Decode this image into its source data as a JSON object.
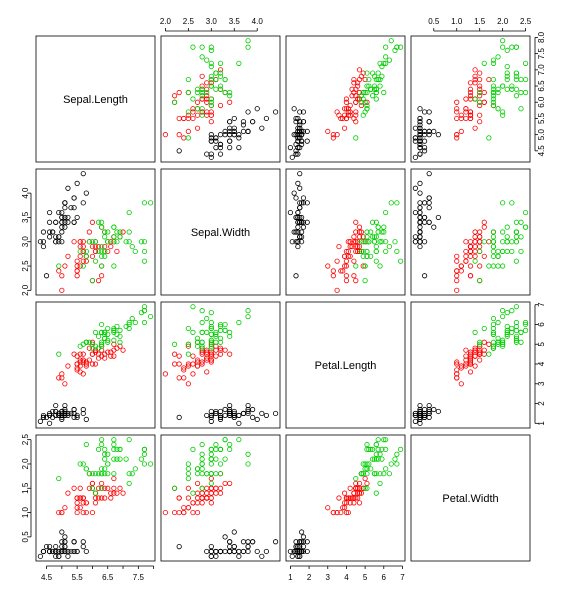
{
  "chart_data": {
    "type": "scatter",
    "title": "",
    "variables": [
      "Sepal.Length",
      "Sepal.Width",
      "Petal.Length",
      "Petal.Width"
    ],
    "ranges": {
      "Sepal.Length": [
        4.3,
        7.9
      ],
      "Sepal.Width": [
        2.0,
        4.4
      ],
      "Petal.Length": [
        1.0,
        6.9
      ],
      "Petal.Width": [
        0.1,
        2.5
      ]
    },
    "ticks": {
      "Sepal.Length": [
        "4.5",
        "5.0",
        "5.5",
        "6.0",
        "6.5",
        "7.0",
        "7.5",
        "8.0"
      ],
      "Sepal.Width": [
        "2.0",
        "2.5",
        "3.0",
        "3.5",
        "4.0"
      ],
      "Petal.Length": [
        "1",
        "2",
        "3",
        "4",
        "5",
        "6",
        "7"
      ],
      "Petal.Width": [
        "0.5",
        "1.0",
        "1.5",
        "2.0",
        "2.5"
      ]
    },
    "bottom_tick_labels": {
      "Sepal.Length": [
        "4.5",
        "5.5",
        "6.5",
        "7.5"
      ],
      "Petal.Length": [
        "1",
        "2",
        "3",
        "4",
        "5",
        "6",
        "7"
      ]
    },
    "grid": false,
    "legend": "none",
    "marker": "open-circle",
    "series_colors": [
      "#000000",
      "#ff0000",
      "#00cd00"
    ],
    "series": [
      {
        "points": [
          [
            5.1,
            3.5,
            1.4,
            0.2
          ],
          [
            4.9,
            3.0,
            1.4,
            0.2
          ],
          [
            4.7,
            3.2,
            1.3,
            0.2
          ],
          [
            4.6,
            3.1,
            1.5,
            0.2
          ],
          [
            5.0,
            3.6,
            1.4,
            0.2
          ],
          [
            5.4,
            3.9,
            1.7,
            0.4
          ],
          [
            4.6,
            3.4,
            1.4,
            0.3
          ],
          [
            5.0,
            3.4,
            1.5,
            0.2
          ],
          [
            4.4,
            2.9,
            1.4,
            0.2
          ],
          [
            4.9,
            3.1,
            1.5,
            0.1
          ],
          [
            5.4,
            3.7,
            1.5,
            0.2
          ],
          [
            4.8,
            3.4,
            1.6,
            0.2
          ],
          [
            4.8,
            3.0,
            1.4,
            0.1
          ],
          [
            4.3,
            3.0,
            1.1,
            0.1
          ],
          [
            5.8,
            4.0,
            1.2,
            0.2
          ],
          [
            5.7,
            4.4,
            1.5,
            0.4
          ],
          [
            5.4,
            3.9,
            1.3,
            0.4
          ],
          [
            5.1,
            3.5,
            1.4,
            0.3
          ],
          [
            5.7,
            3.8,
            1.7,
            0.3
          ],
          [
            5.1,
            3.8,
            1.5,
            0.3
          ],
          [
            5.4,
            3.4,
            1.7,
            0.2
          ],
          [
            5.1,
            3.7,
            1.5,
            0.4
          ],
          [
            4.6,
            3.6,
            1.0,
            0.2
          ],
          [
            5.1,
            3.3,
            1.7,
            0.5
          ],
          [
            4.8,
            3.4,
            1.9,
            0.2
          ],
          [
            5.0,
            3.0,
            1.6,
            0.2
          ],
          [
            5.0,
            3.4,
            1.6,
            0.4
          ],
          [
            5.2,
            3.5,
            1.5,
            0.2
          ],
          [
            5.2,
            3.4,
            1.4,
            0.2
          ],
          [
            4.7,
            3.2,
            1.6,
            0.2
          ],
          [
            4.8,
            3.1,
            1.6,
            0.2
          ],
          [
            5.4,
            3.4,
            1.5,
            0.4
          ],
          [
            5.2,
            4.1,
            1.5,
            0.1
          ],
          [
            5.5,
            4.2,
            1.4,
            0.2
          ],
          [
            4.9,
            3.1,
            1.5,
            0.2
          ],
          [
            5.0,
            3.2,
            1.2,
            0.2
          ],
          [
            5.5,
            3.5,
            1.3,
            0.2
          ],
          [
            4.9,
            3.6,
            1.4,
            0.1
          ],
          [
            4.4,
            3.0,
            1.3,
            0.2
          ],
          [
            5.1,
            3.4,
            1.5,
            0.2
          ],
          [
            5.0,
            3.5,
            1.3,
            0.3
          ],
          [
            4.5,
            2.3,
            1.3,
            0.3
          ],
          [
            4.4,
            3.2,
            1.3,
            0.2
          ],
          [
            5.0,
            3.5,
            1.6,
            0.6
          ],
          [
            5.1,
            3.8,
            1.9,
            0.4
          ],
          [
            4.8,
            3.0,
            1.4,
            0.3
          ],
          [
            5.1,
            3.8,
            1.6,
            0.2
          ],
          [
            4.6,
            3.2,
            1.4,
            0.2
          ],
          [
            5.3,
            3.7,
            1.5,
            0.2
          ],
          [
            5.0,
            3.3,
            1.4,
            0.2
          ]
        ]
      },
      {
        "points": [
          [
            7.0,
            3.2,
            4.7,
            1.4
          ],
          [
            6.4,
            3.2,
            4.5,
            1.5
          ],
          [
            6.9,
            3.1,
            4.9,
            1.5
          ],
          [
            5.5,
            2.3,
            4.0,
            1.3
          ],
          [
            6.5,
            2.8,
            4.6,
            1.5
          ],
          [
            5.7,
            2.8,
            4.5,
            1.3
          ],
          [
            6.3,
            3.3,
            4.7,
            1.6
          ],
          [
            4.9,
            2.4,
            3.3,
            1.0
          ],
          [
            6.6,
            2.9,
            4.6,
            1.3
          ],
          [
            5.2,
            2.7,
            3.9,
            1.4
          ],
          [
            5.0,
            2.0,
            3.5,
            1.0
          ],
          [
            5.9,
            3.0,
            4.2,
            1.5
          ],
          [
            6.0,
            2.2,
            4.0,
            1.0
          ],
          [
            6.1,
            2.9,
            4.7,
            1.4
          ],
          [
            5.6,
            2.9,
            3.6,
            1.3
          ],
          [
            6.7,
            3.1,
            4.4,
            1.4
          ],
          [
            5.6,
            3.0,
            4.5,
            1.5
          ],
          [
            5.8,
            2.7,
            4.1,
            1.0
          ],
          [
            6.2,
            2.2,
            4.5,
            1.5
          ],
          [
            5.6,
            2.5,
            3.9,
            1.1
          ],
          [
            5.9,
            3.2,
            4.8,
            1.8
          ],
          [
            6.1,
            2.8,
            4.0,
            1.3
          ],
          [
            6.3,
            2.5,
            4.9,
            1.5
          ],
          [
            6.1,
            2.8,
            4.7,
            1.2
          ],
          [
            6.4,
            2.9,
            4.3,
            1.3
          ],
          [
            6.6,
            3.0,
            4.4,
            1.4
          ],
          [
            6.8,
            2.8,
            4.8,
            1.4
          ],
          [
            6.7,
            3.0,
            5.0,
            1.7
          ],
          [
            6.0,
            2.9,
            4.5,
            1.5
          ],
          [
            5.7,
            2.6,
            3.5,
            1.0
          ],
          [
            5.5,
            2.4,
            3.8,
            1.1
          ],
          [
            5.5,
            2.4,
            3.7,
            1.0
          ],
          [
            5.8,
            2.7,
            3.9,
            1.2
          ],
          [
            6.0,
            2.7,
            5.1,
            1.6
          ],
          [
            5.4,
            3.0,
            4.5,
            1.5
          ],
          [
            6.0,
            3.4,
            4.5,
            1.6
          ],
          [
            6.7,
            3.1,
            4.7,
            1.5
          ],
          [
            6.3,
            2.3,
            4.4,
            1.3
          ],
          [
            5.6,
            3.0,
            4.1,
            1.3
          ],
          [
            5.5,
            2.5,
            4.0,
            1.3
          ],
          [
            5.5,
            2.6,
            4.4,
            1.2
          ],
          [
            6.1,
            3.0,
            4.6,
            1.4
          ],
          [
            5.8,
            2.6,
            4.0,
            1.2
          ],
          [
            5.0,
            2.3,
            3.3,
            1.0
          ],
          [
            5.6,
            2.7,
            4.2,
            1.3
          ],
          [
            5.7,
            3.0,
            4.2,
            1.2
          ],
          [
            5.7,
            2.9,
            4.2,
            1.3
          ],
          [
            6.2,
            2.9,
            4.3,
            1.3
          ],
          [
            5.1,
            2.5,
            3.0,
            1.1
          ],
          [
            5.7,
            2.8,
            4.1,
            1.3
          ]
        ]
      },
      {
        "points": [
          [
            6.3,
            3.3,
            6.0,
            2.5
          ],
          [
            5.8,
            2.7,
            5.1,
            1.9
          ],
          [
            7.1,
            3.0,
            5.9,
            2.1
          ],
          [
            6.3,
            2.9,
            5.6,
            1.8
          ],
          [
            6.5,
            3.0,
            5.8,
            2.2
          ],
          [
            7.6,
            3.0,
            6.6,
            2.1
          ],
          [
            4.9,
            2.5,
            4.5,
            1.7
          ],
          [
            7.3,
            2.9,
            6.3,
            1.8
          ],
          [
            6.7,
            2.5,
            5.8,
            1.8
          ],
          [
            7.2,
            3.6,
            6.1,
            2.5
          ],
          [
            6.5,
            3.2,
            5.1,
            2.0
          ],
          [
            6.4,
            2.7,
            5.3,
            1.9
          ],
          [
            6.8,
            3.0,
            5.5,
            2.1
          ],
          [
            5.7,
            2.5,
            5.0,
            2.0
          ],
          [
            5.8,
            2.8,
            5.1,
            2.4
          ],
          [
            6.4,
            3.2,
            5.3,
            2.3
          ],
          [
            6.5,
            3.0,
            5.5,
            1.8
          ],
          [
            7.7,
            3.8,
            6.7,
            2.2
          ],
          [
            7.7,
            2.6,
            6.9,
            2.3
          ],
          [
            6.0,
            2.2,
            5.0,
            1.5
          ],
          [
            6.9,
            3.2,
            5.7,
            2.3
          ],
          [
            5.6,
            2.8,
            4.9,
            2.0
          ],
          [
            7.7,
            2.8,
            6.7,
            2.0
          ],
          [
            6.3,
            2.7,
            4.9,
            1.8
          ],
          [
            6.7,
            3.3,
            5.7,
            2.1
          ],
          [
            7.2,
            3.2,
            6.0,
            1.8
          ],
          [
            6.2,
            2.8,
            4.8,
            1.8
          ],
          [
            6.1,
            3.0,
            4.9,
            1.8
          ],
          [
            6.4,
            2.8,
            5.6,
            2.1
          ],
          [
            7.2,
            3.0,
            5.8,
            1.6
          ],
          [
            7.4,
            2.8,
            6.1,
            1.9
          ],
          [
            7.9,
            3.8,
            6.4,
            2.0
          ],
          [
            6.4,
            2.8,
            5.6,
            2.2
          ],
          [
            6.3,
            2.8,
            5.1,
            1.5
          ],
          [
            6.1,
            2.6,
            5.6,
            1.4
          ],
          [
            7.7,
            3.0,
            6.1,
            2.3
          ],
          [
            6.3,
            3.4,
            5.6,
            2.4
          ],
          [
            6.4,
            3.1,
            5.5,
            1.8
          ],
          [
            6.0,
            3.0,
            4.8,
            1.8
          ],
          [
            6.9,
            3.1,
            5.4,
            2.1
          ],
          [
            6.7,
            3.1,
            5.6,
            2.4
          ],
          [
            6.9,
            3.1,
            5.1,
            2.3
          ],
          [
            5.8,
            2.7,
            5.1,
            1.9
          ],
          [
            6.8,
            3.2,
            5.9,
            2.3
          ],
          [
            6.7,
            3.3,
            5.7,
            2.5
          ],
          [
            6.7,
            3.0,
            5.2,
            2.3
          ],
          [
            6.3,
            2.5,
            5.0,
            1.9
          ],
          [
            6.5,
            3.0,
            5.2,
            2.0
          ],
          [
            6.2,
            3.4,
            5.4,
            2.3
          ],
          [
            5.9,
            3.0,
            5.1,
            1.8
          ]
        ]
      }
    ]
  }
}
